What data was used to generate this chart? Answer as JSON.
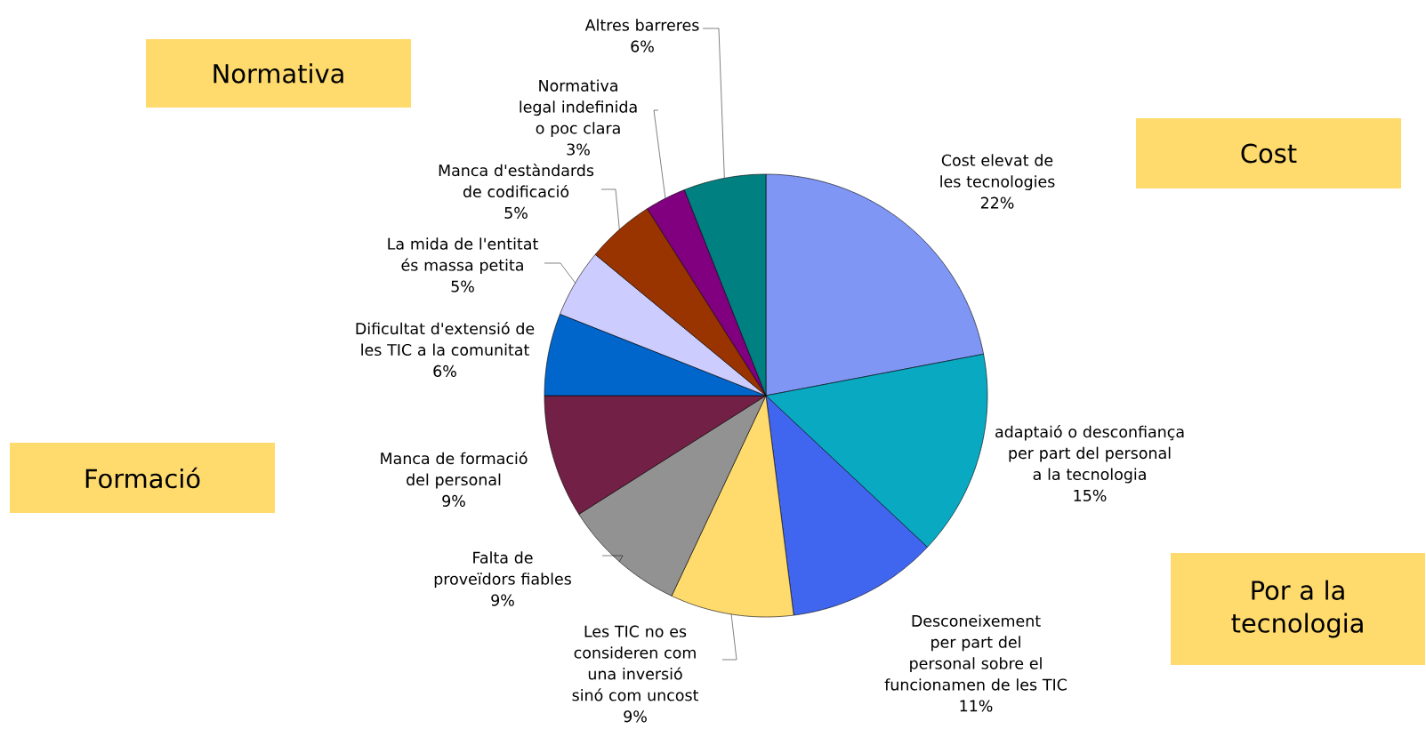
{
  "chart_data": {
    "type": "pie",
    "categories": [
      "Cost elevat de les tecnologies",
      "adaptaió o desconfiança per part del personal a la tecnologia",
      "Desconeixement per part del personal sobre el funcionamen de les TIC",
      "Les TIC no es consideren com una inversió sinó com uncost",
      "Falta de proveïdors fiables",
      "Manca de formació del personal",
      "Dificultat d'extensió de les TIC a la comunitat",
      "La mida de l'entitat és massa petita",
      "Manca d'estàndards de codificació",
      "Normativa legal indefinida o poc clara",
      "Altres barreres"
    ],
    "values": [
      22,
      15,
      11,
      9,
      9,
      9,
      6,
      5,
      5,
      3,
      6
    ],
    "colors": [
      "#7f96f4",
      "#0aa9c2",
      "#4066f0",
      "#ffdb6e",
      "#929292",
      "#722045",
      "#0066cc",
      "#ccccff",
      "#993300",
      "#800080",
      "#008080"
    ],
    "value_labels": [
      "22%",
      "15%",
      "11%",
      "9%",
      "9%",
      "9%",
      "6%",
      "5%",
      "5%",
      "3%",
      "6%"
    ],
    "annotations": [
      "Normativa",
      "Cost",
      "Formació",
      "Por a la tecnologia"
    ]
  }
}
